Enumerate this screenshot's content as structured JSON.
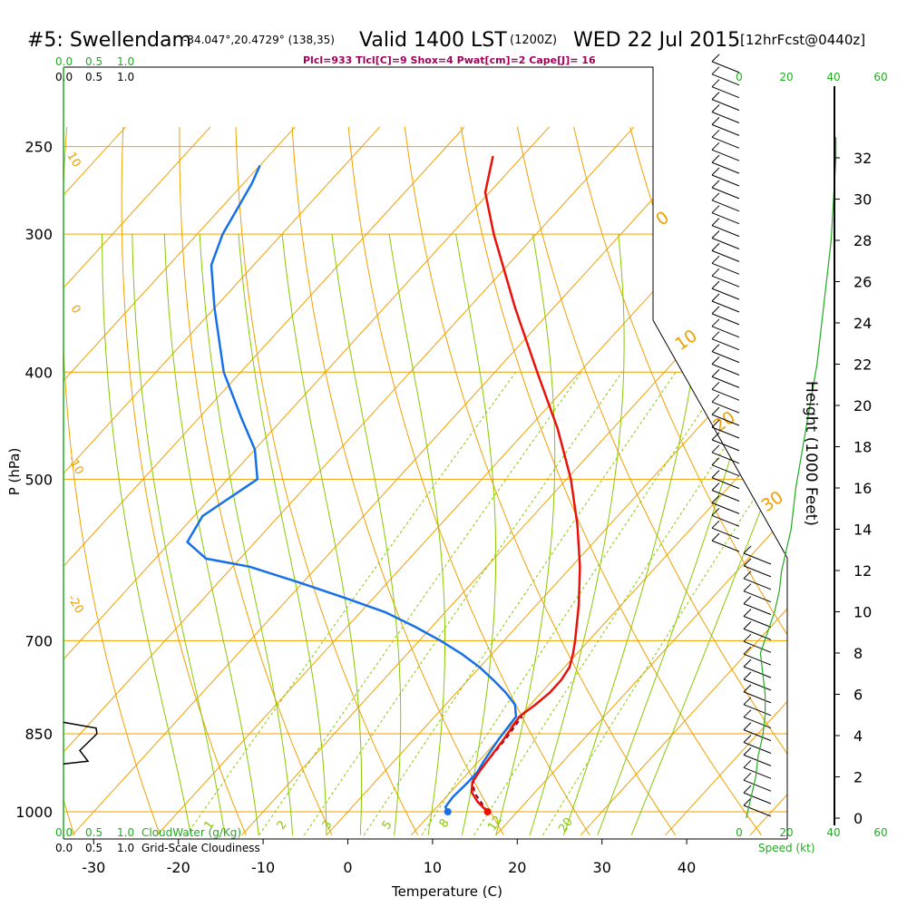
{
  "header": {
    "station": "#5: Swellendam",
    "coords": "-34.047°,20.4729° (138,35)",
    "valid": "Valid 1400 LST",
    "utc": "(1200Z)",
    "date": "WED 22 Jul 2015",
    "forecast": "[12hrFcst@0440z]",
    "indices": "Plcl=933 Tlcl[C]=9 Shox=4 Pwat[cm]=2 Cape[J]= 16"
  },
  "colors": {
    "temperature": "#e8120a",
    "dewpoint": "#1670e8",
    "isobar": "#f0a000",
    "dry_adiabat": "#f0a000",
    "moist_adiabat": "#88c800",
    "mixing_ratio": "#88c800",
    "cloud_water": "#22aa22",
    "parcel": "#8a0030",
    "index_text": "#a0005a"
  },
  "chart_data": {
    "type": "skew-t",
    "xlabel": "Temperature (C)",
    "ylabel": "P (hPa)",
    "right_label": "Height (1000 Feet)",
    "x_ticks": [
      -30,
      -20,
      -10,
      0,
      10,
      20,
      30,
      40
    ],
    "xlim_at_1000hPa": [
      -34,
      46
    ],
    "p_ticks": [
      250,
      300,
      400,
      500,
      700,
      850,
      1000
    ],
    "plim": [
      250,
      1020
    ],
    "temperature": [
      {
        "p": 1000,
        "t": 16.5
      },
      {
        "p": 980,
        "t": 14.3
      },
      {
        "p": 960,
        "t": 12.5
      },
      {
        "p": 940,
        "t": 11.5
      },
      {
        "p": 920,
        "t": 11.2
      },
      {
        "p": 900,
        "t": 11.0
      },
      {
        "p": 880,
        "t": 10.8
      },
      {
        "p": 860,
        "t": 10.6
      },
      {
        "p": 840,
        "t": 10.3
      },
      {
        "p": 820,
        "t": 10.0
      },
      {
        "p": 800,
        "t": 10.6
      },
      {
        "p": 780,
        "t": 11.0
      },
      {
        "p": 760,
        "t": 11.0
      },
      {
        "p": 740,
        "t": 10.6
      },
      {
        "p": 720,
        "t": 9.6
      },
      {
        "p": 700,
        "t": 8.4
      },
      {
        "p": 650,
        "t": 5.0
      },
      {
        "p": 600,
        "t": 1.0
      },
      {
        "p": 550,
        "t": -3.8
      },
      {
        "p": 500,
        "t": -9.5
      },
      {
        "p": 450,
        "t": -16.5
      },
      {
        "p": 400,
        "t": -25.0
      },
      {
        "p": 350,
        "t": -34.5
      },
      {
        "p": 300,
        "t": -45.0
      },
      {
        "p": 275,
        "t": -50.5
      },
      {
        "p": 255,
        "t": -53.5
      }
    ],
    "dewpoint": [
      {
        "p": 1000,
        "t": 11.8
      },
      {
        "p": 990,
        "t": 11.0
      },
      {
        "p": 970,
        "t": 10.8
      },
      {
        "p": 940,
        "t": 11.0
      },
      {
        "p": 920,
        "t": 11.0
      },
      {
        "p": 900,
        "t": 10.6
      },
      {
        "p": 880,
        "t": 10.3
      },
      {
        "p": 860,
        "t": 10.0
      },
      {
        "p": 840,
        "t": 9.8
      },
      {
        "p": 820,
        "t": 9.6
      },
      {
        "p": 800,
        "t": 8.2
      },
      {
        "p": 780,
        "t": 5.8
      },
      {
        "p": 760,
        "t": 3.0
      },
      {
        "p": 740,
        "t": 0.0
      },
      {
        "p": 720,
        "t": -3.5
      },
      {
        "p": 700,
        "t": -7.5
      },
      {
        "p": 680,
        "t": -12.0
      },
      {
        "p": 660,
        "t": -17.0
      },
      {
        "p": 640,
        "t": -23.5
      },
      {
        "p": 620,
        "t": -30.5
      },
      {
        "p": 600,
        "t": -38.0
      },
      {
        "p": 590,
        "t": -44.0
      },
      {
        "p": 570,
        "t": -48.0
      },
      {
        "p": 540,
        "t": -49.0
      },
      {
        "p": 500,
        "t": -46.5
      },
      {
        "p": 470,
        "t": -50.0
      },
      {
        "p": 440,
        "t": -55.0
      },
      {
        "p": 400,
        "t": -62.0
      },
      {
        "p": 350,
        "t": -70.0
      },
      {
        "p": 320,
        "t": -75.0
      },
      {
        "p": 300,
        "t": -77.0
      },
      {
        "p": 270,
        "t": -79.0
      },
      {
        "p": 260,
        "t": -80.0
      }
    ],
    "parcel": [
      {
        "p": 1000,
        "t": 16.5
      },
      {
        "p": 960,
        "t": 12.8
      },
      {
        "p": 933,
        "t": 11.2
      },
      {
        "p": 900,
        "t": 11.0
      },
      {
        "p": 860,
        "t": 10.8
      },
      {
        "p": 820,
        "t": 10.3
      }
    ],
    "surface_markers": [
      {
        "name": "temperature",
        "p": 1000,
        "t": 16.5
      },
      {
        "name": "dewpoint",
        "p": 1000,
        "t": 11.8
      }
    ],
    "dry_adiabat_labels": [
      "10",
      "0",
      "-10",
      "-20"
    ],
    "moist_adiabat_labels": [
      "0",
      "10",
      "20",
      "30"
    ],
    "mixing_ratio_labels": [
      "1",
      "2",
      "3",
      "5",
      "8",
      "12",
      "20"
    ],
    "cloudwater_scale": [
      "0.0",
      "0.5",
      "1.0"
    ],
    "cloudiness_scale": [
      "0.0",
      "0.5",
      "1.0"
    ],
    "cloudwater_label": "CloudWater (g/Kg)",
    "cloudiness_label": "Grid-Scale Cloudiness",
    "cloudiness_profile": [
      {
        "p": 830,
        "v": 0.0
      },
      {
        "p": 840,
        "v": 0.4
      },
      {
        "p": 850,
        "v": 0.41
      },
      {
        "p": 880,
        "v": 0.2
      },
      {
        "p": 900,
        "v": 0.3
      },
      {
        "p": 905,
        "v": 0.0
      }
    ],
    "height_ticks": [
      0,
      2,
      4,
      6,
      8,
      10,
      12,
      14,
      16,
      18,
      20,
      22,
      24,
      26,
      28,
      30,
      32
    ],
    "speed_ticks": [
      0,
      20,
      40,
      60
    ],
    "speed_label": "Speed (kt)",
    "wind_speed_profile": [
      {
        "h": 0.0,
        "s": 3
      },
      {
        "h": 1.0,
        "s": 5
      },
      {
        "h": 2.0,
        "s": 7
      },
      {
        "h": 3.0,
        "s": 8
      },
      {
        "h": 4.0,
        "s": 10
      },
      {
        "h": 5.0,
        "s": 11
      },
      {
        "h": 6.0,
        "s": 11
      },
      {
        "h": 7.0,
        "s": 10
      },
      {
        "h": 8.0,
        "s": 9
      },
      {
        "h": 9.0,
        "s": 12
      },
      {
        "h": 10.0,
        "s": 15
      },
      {
        "h": 11.0,
        "s": 17
      },
      {
        "h": 12.0,
        "s": 18
      },
      {
        "h": 13.0,
        "s": 20
      },
      {
        "h": 14.0,
        "s": 22
      },
      {
        "h": 16.0,
        "s": 24
      },
      {
        "h": 18.0,
        "s": 27
      },
      {
        "h": 20.0,
        "s": 30
      },
      {
        "h": 22.0,
        "s": 33
      },
      {
        "h": 24.0,
        "s": 35
      },
      {
        "h": 26.0,
        "s": 37
      },
      {
        "h": 28.0,
        "s": 39
      },
      {
        "h": 30.0,
        "s": 40
      },
      {
        "h": 32.0,
        "s": 41
      },
      {
        "h": 33.0,
        "s": 41
      }
    ]
  }
}
